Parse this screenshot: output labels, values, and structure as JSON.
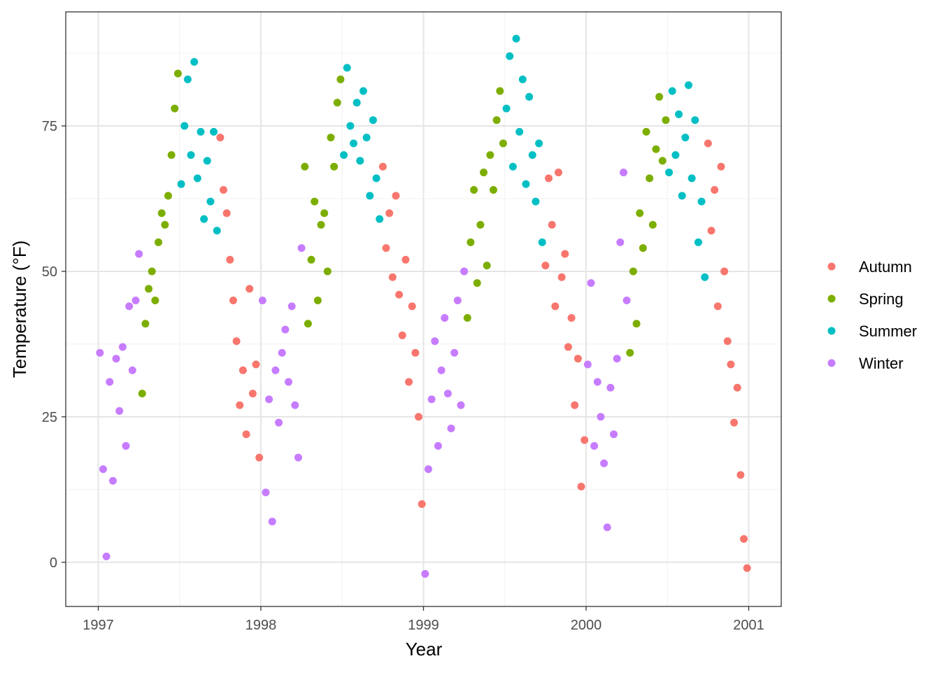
{
  "chart_data": {
    "type": "scatter",
    "title": "",
    "xlabel": "Year",
    "ylabel": "Temperature (°F)",
    "xlim": [
      1996.8,
      2001.2
    ],
    "ylim": [
      -7.6,
      94.6
    ],
    "x_ticks": [
      1997,
      1998,
      1999,
      2000,
      2001
    ],
    "x_tick_labels": [
      "1997",
      "1998",
      "1999",
      "2000",
      "2001"
    ],
    "y_ticks": [
      0,
      25,
      50,
      75
    ],
    "y_tick_labels": [
      "0",
      "25",
      "50",
      "75"
    ],
    "grid": true,
    "legend_position": "right",
    "series": [
      {
        "name": "Autumn",
        "color": "#F8766D",
        "points": [
          [
            1997.75,
            73
          ],
          [
            1997.77,
            64
          ],
          [
            1997.79,
            60
          ],
          [
            1997.81,
            52
          ],
          [
            1997.83,
            45
          ],
          [
            1997.85,
            38
          ],
          [
            1997.87,
            27
          ],
          [
            1997.89,
            33
          ],
          [
            1997.91,
            22
          ],
          [
            1997.93,
            47
          ],
          [
            1997.95,
            29
          ],
          [
            1997.97,
            34
          ],
          [
            1997.99,
            18
          ],
          [
            1998.75,
            68
          ],
          [
            1998.77,
            54
          ],
          [
            1998.79,
            60
          ],
          [
            1998.81,
            49
          ],
          [
            1998.83,
            63
          ],
          [
            1998.85,
            46
          ],
          [
            1998.87,
            39
          ],
          [
            1998.89,
            52
          ],
          [
            1998.91,
            31
          ],
          [
            1998.93,
            44
          ],
          [
            1998.95,
            36
          ],
          [
            1998.97,
            25
          ],
          [
            1998.99,
            10
          ],
          [
            1999.75,
            51
          ],
          [
            1999.77,
            66
          ],
          [
            1999.79,
            58
          ],
          [
            1999.81,
            44
          ],
          [
            1999.83,
            67
          ],
          [
            1999.85,
            49
          ],
          [
            1999.87,
            53
          ],
          [
            1999.89,
            37
          ],
          [
            1999.91,
            42
          ],
          [
            1999.93,
            27
          ],
          [
            1999.95,
            35
          ],
          [
            1999.97,
            13
          ],
          [
            1999.99,
            21
          ],
          [
            2000.75,
            72
          ],
          [
            2000.77,
            57
          ],
          [
            2000.79,
            64
          ],
          [
            2000.81,
            44
          ],
          [
            2000.83,
            68
          ],
          [
            2000.85,
            50
          ],
          [
            2000.87,
            38
          ],
          [
            2000.89,
            34
          ],
          [
            2000.91,
            24
          ],
          [
            2000.93,
            30
          ],
          [
            2000.95,
            15
          ],
          [
            2000.97,
            4
          ],
          [
            2000.99,
            -1
          ]
        ]
      },
      {
        "name": "Spring",
        "color": "#7CAE00",
        "points": [
          [
            1997.27,
            29
          ],
          [
            1997.29,
            41
          ],
          [
            1997.31,
            47
          ],
          [
            1997.33,
            50
          ],
          [
            1997.35,
            45
          ],
          [
            1997.37,
            55
          ],
          [
            1997.39,
            60
          ],
          [
            1997.41,
            58
          ],
          [
            1997.43,
            63
          ],
          [
            1997.45,
            70
          ],
          [
            1997.47,
            78
          ],
          [
            1997.49,
            84
          ],
          [
            1998.27,
            68
          ],
          [
            1998.29,
            41
          ],
          [
            1998.31,
            52
          ],
          [
            1998.33,
            62
          ],
          [
            1998.35,
            45
          ],
          [
            1998.37,
            58
          ],
          [
            1998.39,
            60
          ],
          [
            1998.41,
            50
          ],
          [
            1998.43,
            73
          ],
          [
            1998.45,
            68
          ],
          [
            1998.47,
            79
          ],
          [
            1998.49,
            83
          ],
          [
            1999.27,
            42
          ],
          [
            1999.29,
            55
          ],
          [
            1999.31,
            64
          ],
          [
            1999.33,
            48
          ],
          [
            1999.35,
            58
          ],
          [
            1999.37,
            67
          ],
          [
            1999.39,
            51
          ],
          [
            1999.41,
            70
          ],
          [
            1999.43,
            64
          ],
          [
            1999.45,
            76
          ],
          [
            1999.47,
            81
          ],
          [
            1999.49,
            72
          ],
          [
            2000.27,
            36
          ],
          [
            2000.29,
            50
          ],
          [
            2000.31,
            41
          ],
          [
            2000.33,
            60
          ],
          [
            2000.35,
            54
          ],
          [
            2000.37,
            74
          ],
          [
            2000.39,
            66
          ],
          [
            2000.41,
            58
          ],
          [
            2000.43,
            71
          ],
          [
            2000.45,
            80
          ],
          [
            2000.47,
            69
          ],
          [
            2000.49,
            76
          ]
        ]
      },
      {
        "name": "Summer",
        "color": "#00BFC4",
        "points": [
          [
            1997.51,
            65
          ],
          [
            1997.53,
            75
          ],
          [
            1997.55,
            83
          ],
          [
            1997.57,
            70
          ],
          [
            1997.59,
            86
          ],
          [
            1997.61,
            66
          ],
          [
            1997.63,
            74
          ],
          [
            1997.65,
            59
          ],
          [
            1997.67,
            69
          ],
          [
            1997.69,
            62
          ],
          [
            1997.71,
            74
          ],
          [
            1997.73,
            57
          ],
          [
            1998.51,
            70
          ],
          [
            1998.53,
            85
          ],
          [
            1998.55,
            75
          ],
          [
            1998.57,
            72
          ],
          [
            1998.59,
            79
          ],
          [
            1998.61,
            69
          ],
          [
            1998.63,
            81
          ],
          [
            1998.65,
            73
          ],
          [
            1998.67,
            63
          ],
          [
            1998.69,
            76
          ],
          [
            1998.71,
            66
          ],
          [
            1998.73,
            59
          ],
          [
            1999.51,
            78
          ],
          [
            1999.53,
            87
          ],
          [
            1999.55,
            68
          ],
          [
            1999.57,
            90
          ],
          [
            1999.59,
            74
          ],
          [
            1999.61,
            83
          ],
          [
            1999.63,
            65
          ],
          [
            1999.65,
            80
          ],
          [
            1999.67,
            70
          ],
          [
            1999.69,
            62
          ],
          [
            1999.71,
            72
          ],
          [
            1999.73,
            55
          ],
          [
            2000.51,
            67
          ],
          [
            2000.53,
            81
          ],
          [
            2000.55,
            70
          ],
          [
            2000.57,
            77
          ],
          [
            2000.59,
            63
          ],
          [
            2000.61,
            73
          ],
          [
            2000.63,
            82
          ],
          [
            2000.65,
            66
          ],
          [
            2000.67,
            76
          ],
          [
            2000.69,
            55
          ],
          [
            2000.71,
            62
          ],
          [
            2000.73,
            49
          ]
        ]
      },
      {
        "name": "Winter",
        "color": "#C77CFF",
        "points": [
          [
            1997.01,
            36
          ],
          [
            1997.03,
            16
          ],
          [
            1997.05,
            1
          ],
          [
            1997.07,
            31
          ],
          [
            1997.09,
            14
          ],
          [
            1997.11,
            35
          ],
          [
            1997.13,
            26
          ],
          [
            1997.15,
            37
          ],
          [
            1997.17,
            20
          ],
          [
            1997.19,
            44
          ],
          [
            1997.21,
            33
          ],
          [
            1997.23,
            45
          ],
          [
            1997.25,
            53
          ],
          [
            1998.01,
            45
          ],
          [
            1998.03,
            12
          ],
          [
            1998.05,
            28
          ],
          [
            1998.07,
            7
          ],
          [
            1998.09,
            33
          ],
          [
            1998.11,
            24
          ],
          [
            1998.13,
            36
          ],
          [
            1998.15,
            40
          ],
          [
            1998.17,
            31
          ],
          [
            1998.19,
            44
          ],
          [
            1998.21,
            27
          ],
          [
            1998.23,
            18
          ],
          [
            1998.25,
            54
          ],
          [
            1999.01,
            -2
          ],
          [
            1999.03,
            16
          ],
          [
            1999.05,
            28
          ],
          [
            1999.07,
            38
          ],
          [
            1999.09,
            20
          ],
          [
            1999.11,
            33
          ],
          [
            1999.13,
            42
          ],
          [
            1999.15,
            29
          ],
          [
            1999.17,
            23
          ],
          [
            1999.19,
            36
          ],
          [
            1999.21,
            45
          ],
          [
            1999.23,
            27
          ],
          [
            1999.25,
            50
          ],
          [
            2000.01,
            34
          ],
          [
            2000.03,
            48
          ],
          [
            2000.05,
            20
          ],
          [
            2000.07,
            31
          ],
          [
            2000.09,
            25
          ],
          [
            2000.11,
            17
          ],
          [
            2000.13,
            6
          ],
          [
            2000.15,
            30
          ],
          [
            2000.17,
            22
          ],
          [
            2000.19,
            35
          ],
          [
            2000.21,
            55
          ],
          [
            2000.23,
            67
          ],
          [
            2000.25,
            45
          ]
        ]
      }
    ]
  }
}
